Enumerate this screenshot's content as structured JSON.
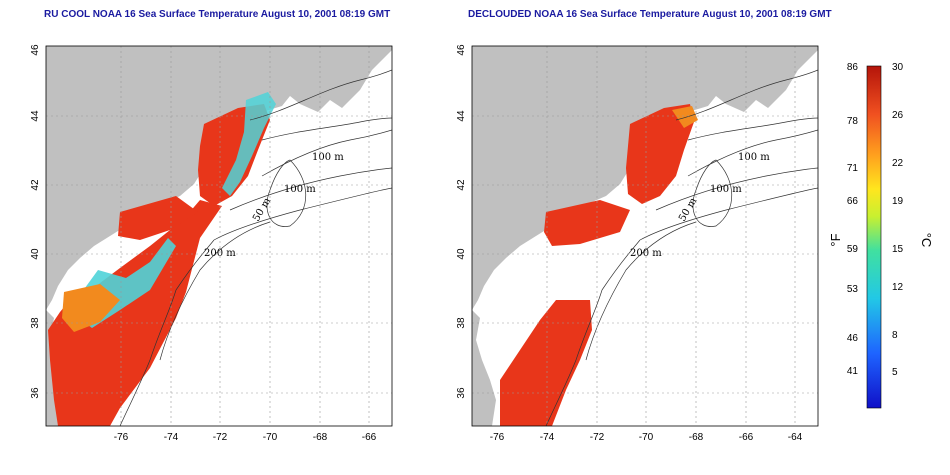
{
  "titles": {
    "left": "RU COOL NOAA 16 Sea Surface Temperature August 10, 2001 08:19 GMT",
    "right": "DECLOUDED NOAA 16 Sea Surface Temperature August 10, 2001 08:19 GMT"
  },
  "axes": {
    "lon_ticks": [
      "-76",
      "-74",
      "-72",
      "-70",
      "-68",
      "-66",
      "-64"
    ],
    "lat_ticks": [
      "36",
      "38",
      "40",
      "42",
      "44",
      "46"
    ]
  },
  "contours": [
    "100 m",
    "100 m",
    "50 m",
    "200 m"
  ],
  "colorbar": {
    "fahrenheit_label": "°F",
    "celsius_label": "°C",
    "fahrenheit_ticks": [
      "86",
      "78",
      "71",
      "66",
      "59",
      "53",
      "46",
      "41"
    ],
    "celsius_ticks": [
      "30",
      "26",
      "22",
      "19",
      "15",
      "12",
      "8",
      "5"
    ]
  },
  "colors": {
    "land": "#c0c0c0",
    "sst_hot": "#e8361a",
    "sst_warm": "#f28a1e",
    "sst_mid": "#4fd3d8",
    "title": "#1a1aa0"
  }
}
